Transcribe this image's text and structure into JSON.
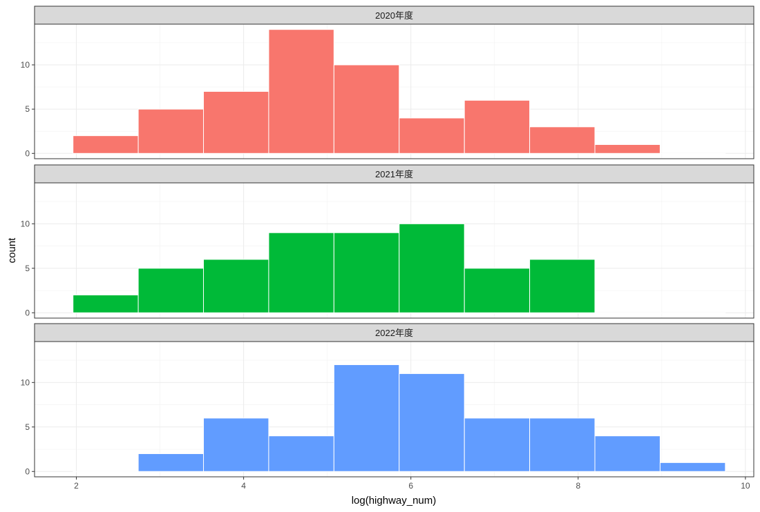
{
  "chart_data": {
    "type": "bar",
    "subtype": "faceted-histogram",
    "xlabel": "log(highway_num)",
    "ylabel": "count",
    "xlim": [
      1.5,
      10.1
    ],
    "ylim": [
      -0.6,
      14.6
    ],
    "x_ticks": [
      2,
      4,
      6,
      8,
      10
    ],
    "y_ticks": [
      0,
      5,
      10
    ],
    "bin_edges": [
      1.96,
      2.74,
      3.52,
      4.3,
      5.08,
      5.86,
      6.64,
      7.42,
      8.2,
      8.98,
      9.76
    ],
    "bar_outline": "#ffffff",
    "grid": true,
    "legend": "none",
    "panels": [
      {
        "strip": "2020年度",
        "color": "#F8766D",
        "counts": [
          2,
          5,
          7,
          14,
          10,
          4,
          6,
          3,
          1,
          0
        ]
      },
      {
        "strip": "2021年度",
        "color": "#00BA38",
        "counts": [
          2,
          5,
          6,
          9,
          9,
          10,
          5,
          6,
          0,
          0
        ]
      },
      {
        "strip": "2022年度",
        "color": "#619CFF",
        "counts": [
          0,
          2,
          6,
          4,
          12,
          11,
          6,
          6,
          4,
          1
        ]
      }
    ]
  }
}
